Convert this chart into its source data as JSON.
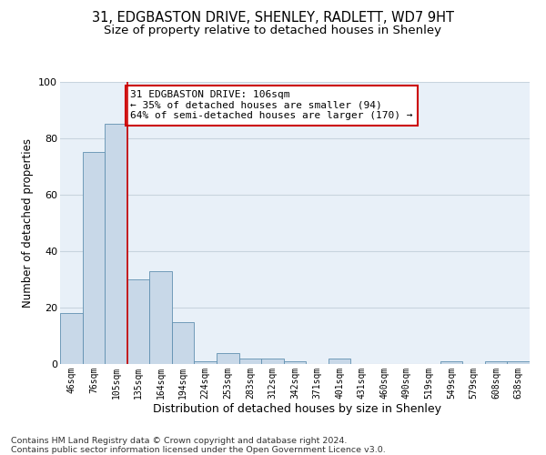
{
  "title_line1": "31, EDGBASTON DRIVE, SHENLEY, RADLETT, WD7 9HT",
  "title_line2": "Size of property relative to detached houses in Shenley",
  "xlabel": "Distribution of detached houses by size in Shenley",
  "ylabel": "Number of detached properties",
  "bar_labels": [
    "46sqm",
    "76sqm",
    "105sqm",
    "135sqm",
    "164sqm",
    "194sqm",
    "224sqm",
    "253sqm",
    "283sqm",
    "312sqm",
    "342sqm",
    "371sqm",
    "401sqm",
    "431sqm",
    "460sqm",
    "490sqm",
    "519sqm",
    "549sqm",
    "579sqm",
    "608sqm",
    "638sqm"
  ],
  "bar_heights": [
    18,
    75,
    85,
    30,
    33,
    15,
    1,
    4,
    2,
    2,
    1,
    0,
    2,
    0,
    0,
    0,
    0,
    1,
    0,
    1,
    1
  ],
  "bar_color": "#c8d8e8",
  "bar_edge_color": "#6090b0",
  "highlight_bar_index": 2,
  "highlight_line_color": "#cc0000",
  "annotation_text": "31 EDGBASTON DRIVE: 106sqm\n← 35% of detached houses are smaller (94)\n64% of semi-detached houses are larger (170) →",
  "annotation_box_color": "#ffffff",
  "annotation_box_edge_color": "#cc0000",
  "ylim": [
    0,
    100
  ],
  "yticks": [
    0,
    20,
    40,
    60,
    80,
    100
  ],
  "grid_color": "#c8d4de",
  "bg_color": "#e8f0f8",
  "footer_text": "Contains HM Land Registry data © Crown copyright and database right 2024.\nContains public sector information licensed under the Open Government Licence v3.0.",
  "title_fontsize": 10.5,
  "subtitle_fontsize": 9.5,
  "xlabel_fontsize": 9,
  "ylabel_fontsize": 8.5,
  "tick_fontsize": 7,
  "annotation_fontsize": 8,
  "footer_fontsize": 6.8
}
